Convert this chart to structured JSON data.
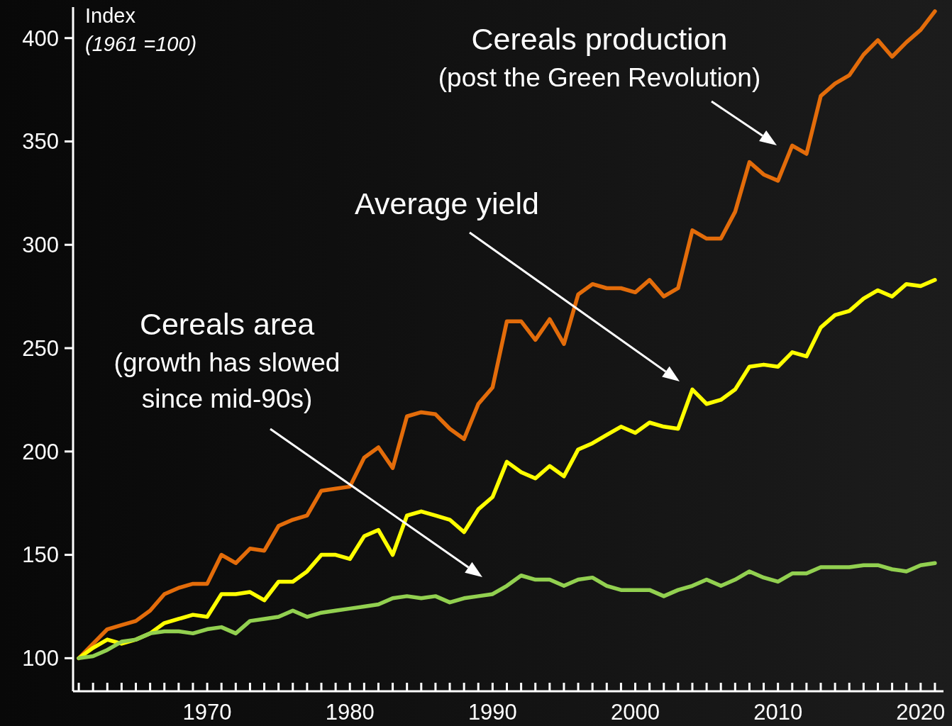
{
  "chart_data": {
    "type": "line",
    "ylabel": "Index\n(1961 =100)",
    "x": [
      1961,
      1962,
      1963,
      1964,
      1965,
      1966,
      1967,
      1968,
      1969,
      1970,
      1971,
      1972,
      1973,
      1974,
      1975,
      1976,
      1977,
      1978,
      1979,
      1980,
      1981,
      1982,
      1983,
      1984,
      1985,
      1986,
      1987,
      1988,
      1989,
      1990,
      1991,
      1992,
      1993,
      1994,
      1995,
      1996,
      1997,
      1998,
      1999,
      2000,
      2001,
      2002,
      2003,
      2004,
      2005,
      2006,
      2007,
      2008,
      2009,
      2010,
      2011,
      2012,
      2013,
      2014,
      2015,
      2016,
      2017,
      2018,
      2019,
      2020,
      2021
    ],
    "series": [
      {
        "color": "#e36c0a",
        "values": [
          100,
          107,
          114,
          116,
          118,
          123,
          131,
          134,
          136,
          136,
          150,
          146,
          153,
          152,
          164,
          167,
          169,
          181,
          182,
          183,
          197,
          202,
          192,
          217,
          219,
          218,
          211,
          206,
          223,
          231,
          263,
          263,
          254,
          264,
          252,
          276,
          281,
          279,
          279,
          277,
          283,
          275,
          279,
          307,
          303,
          303,
          316,
          340,
          334,
          331,
          348,
          344,
          372,
          378,
          382,
          392,
          399,
          391,
          398,
          404,
          413
        ]
      },
      {
        "color": "#ffff00",
        "values": [
          100,
          105,
          109,
          107,
          109,
          112,
          117,
          119,
          121,
          120,
          131,
          131,
          132,
          128,
          137,
          137,
          142,
          150,
          150,
          148,
          159,
          162,
          150,
          169,
          171,
          169,
          167,
          161,
          172,
          178,
          195,
          190,
          187,
          193,
          188,
          201,
          204,
          208,
          212,
          209,
          214,
          212,
          211,
          230,
          223,
          225,
          230,
          241,
          242,
          241,
          248,
          246,
          260,
          266,
          268,
          274,
          278,
          275,
          281,
          280,
          283
        ]
      },
      {
        "color": "#92d050",
        "values": [
          100,
          101,
          104,
          108,
          109,
          112,
          113,
          113,
          112,
          114,
          115,
          112,
          118,
          119,
          120,
          123,
          120,
          122,
          123,
          124,
          125,
          126,
          129,
          130,
          129,
          130,
          127,
          129,
          130,
          131,
          135,
          140,
          138,
          138,
          135,
          138,
          139,
          135,
          133,
          133,
          133,
          130,
          133,
          135,
          138,
          135,
          138,
          142,
          139,
          137,
          141,
          141,
          144,
          144,
          144,
          145,
          145,
          143,
          142,
          145,
          146
        ]
      }
    ],
    "xlim": [
      1960.6,
      2021.6
    ],
    "xticks": [
      {
        "value": 1961,
        "label": null
      },
      {
        "value": 1962,
        "label": null
      },
      {
        "value": 1963,
        "label": null
      },
      {
        "value": 1964,
        "label": null
      },
      {
        "value": 1965,
        "label": null
      },
      {
        "value": 1966,
        "label": null
      },
      {
        "value": 1967,
        "label": null
      },
      {
        "value": 1968,
        "label": null
      },
      {
        "value": 1969,
        "label": null
      },
      1970,
      {
        "value": 1971,
        "label": null
      },
      {
        "value": 1972,
        "label": null
      },
      {
        "value": 1973,
        "label": null
      },
      {
        "value": 1974,
        "label": null
      },
      {
        "value": 1975,
        "label": null
      },
      {
        "value": 1976,
        "label": null
      },
      {
        "value": 1977,
        "label": null
      },
      {
        "value": 1978,
        "label": null
      },
      {
        "value": 1979,
        "label": null
      },
      1980,
      {
        "value": 1981,
        "label": null
      },
      {
        "value": 1982,
        "label": null
      },
      {
        "value": 1983,
        "label": null
      },
      {
        "value": 1984,
        "label": null
      },
      {
        "value": 1985,
        "label": null
      },
      {
        "value": 1986,
        "label": null
      },
      {
        "value": 1987,
        "label": null
      },
      {
        "value": 1988,
        "label": null
      },
      {
        "value": 1989,
        "label": null
      },
      1990,
      {
        "value": 1991,
        "label": null
      },
      {
        "value": 1992,
        "label": null
      },
      {
        "value": 1993,
        "label": null
      },
      {
        "value": 1994,
        "label": null
      },
      {
        "value": 1995,
        "label": null
      },
      {
        "value": 1996,
        "label": null
      },
      {
        "value": 1997,
        "label": null
      },
      {
        "value": 1998,
        "label": null
      },
      {
        "value": 1999,
        "label": null
      },
      2000,
      {
        "value": 2001,
        "label": null
      },
      {
        "value": 2002,
        "label": null
      },
      {
        "value": 2003,
        "label": null
      },
      {
        "value": 2004,
        "label": null
      },
      {
        "value": 2005,
        "label": null
      },
      {
        "value": 2006,
        "label": null
      },
      {
        "value": 2007,
        "label": null
      },
      {
        "value": 2008,
        "label": null
      },
      {
        "value": 2009,
        "label": null
      },
      2010,
      {
        "value": 2011,
        "label": null
      },
      {
        "value": 2012,
        "label": null
      },
      {
        "value": 2013,
        "label": null
      },
      {
        "value": 2014,
        "label": null
      },
      {
        "value": 2015,
        "label": null
      },
      {
        "value": 2016,
        "label": null
      },
      {
        "value": 2017,
        "label": null
      },
      {
        "value": 2018,
        "label": null
      },
      {
        "value": 2019,
        "label": null
      },
      2020,
      {
        "value": 2021,
        "label": null
      }
    ],
    "ylim": [
      84,
      415
    ],
    "yticks": [
      100,
      150,
      200,
      250,
      300,
      350,
      400
    ],
    "annotations": [
      "Cereals production\n(post the Green Revolution)",
      "Average yield",
      "Cereals area\n(growth has slowed\nsince mid-90s)"
    ],
    "grid": false,
    "legend": false,
    "marker": "none",
    "line_style": "solid"
  }
}
